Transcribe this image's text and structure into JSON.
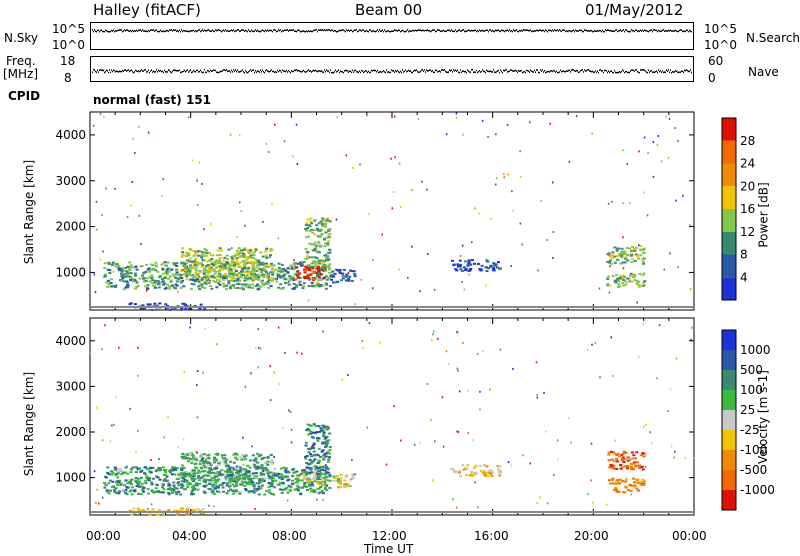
{
  "header": {
    "station": "Halley (fitACF)",
    "beam": "Beam 00",
    "date": "01/May/2012"
  },
  "nsky": {
    "label": "N.Sky",
    "tick_top": "10^5",
    "tick_bottom": "10^0"
  },
  "nsearch": {
    "label": "N.Search",
    "tick_top": "10^5",
    "tick_bottom": "10^0"
  },
  "freq": {
    "label_1": "Freq.",
    "label_2": "[MHz]",
    "tick_top": "18",
    "tick_bottom": "8"
  },
  "nave": {
    "label": "Nave",
    "tick_top": "60",
    "tick_bottom": "0"
  },
  "cpid": {
    "label": "CPID",
    "value": "normal (fast) 151"
  },
  "chart_data": [
    {
      "type": "heatmap",
      "title": "",
      "ylabel": "Slant Range [km]",
      "ylim": [
        180,
        4500
      ],
      "yticks": [
        "1000",
        "2000",
        "3000",
        "4000"
      ],
      "colorbar_label": "Power [dB]",
      "colorbar_ticks": [
        "4",
        "8",
        "12",
        "16",
        "20",
        "24",
        "28"
      ],
      "colorbar_colors": [
        "#1e32dc",
        "#2858a6",
        "#3a8a70",
        "#82c84a",
        "#f0c400",
        "#f08a00",
        "#f06a00",
        "#e01000"
      ],
      "x": [
        "00:00",
        "04:00",
        "08:00",
        "12:00",
        "16:00",
        "20:00",
        "00:00"
      ],
      "bands": [
        {
          "t0": 0.5,
          "t1": 9.5,
          "r0": 650,
          "r1": 1250,
          "level": 0.35
        },
        {
          "t0": 3.5,
          "t1": 7.2,
          "r0": 850,
          "r1": 1550,
          "level": 0.45
        },
        {
          "t0": 8.0,
          "t1": 9.3,
          "r0": 850,
          "r1": 1150,
          "level": 0.95
        },
        {
          "t0": 8.5,
          "t1": 9.5,
          "r0": 1100,
          "r1": 2200,
          "level": 0.4
        },
        {
          "t0": 9.5,
          "t1": 10.5,
          "r0": 800,
          "r1": 1100,
          "level": 0.2
        },
        {
          "t0": 14.3,
          "t1": 16.3,
          "r0": 1050,
          "r1": 1300,
          "level": 0.15
        },
        {
          "t0": 20.5,
          "t1": 22.0,
          "r0": 700,
          "r1": 1000,
          "level": 0.4
        },
        {
          "t0": 20.5,
          "t1": 22.0,
          "r0": 1200,
          "r1": 1600,
          "level": 0.4
        },
        {
          "t0": 1.5,
          "t1": 4.5,
          "r0": 200,
          "r1": 350,
          "level": 0.1
        }
      ]
    },
    {
      "type": "heatmap",
      "title": "",
      "ylabel": "Slant Range [km]",
      "xlabel": "Time UT",
      "ylim": [
        180,
        4500
      ],
      "yticks": [
        "1000",
        "2000",
        "3000",
        "4000"
      ],
      "colorbar_label": "Velocity [m s-1]",
      "colorbar_ticks": [
        "1000",
        "500",
        "100",
        "25",
        "-25",
        "-100",
        "-500",
        "-1000"
      ],
      "colorbar_colors": [
        "#1e32dc",
        "#2858a6",
        "#3a8a70",
        "#3aba3a",
        "#c8c8c8",
        "#f0c400",
        "#f08a00",
        "#f06a00",
        "#e01000"
      ],
      "x": [
        "00:00",
        "04:00",
        "08:00",
        "12:00",
        "16:00",
        "20:00",
        "00:00"
      ],
      "bands": [
        {
          "t0": 0.5,
          "t1": 9.5,
          "r0": 650,
          "r1": 1250,
          "level": 0.3
        },
        {
          "t0": 3.5,
          "t1": 7.2,
          "r0": 850,
          "r1": 1550,
          "level": 0.35
        },
        {
          "t0": 8.0,
          "t1": 9.3,
          "r0": 850,
          "r1": 1150,
          "level": 0.5
        },
        {
          "t0": 8.5,
          "t1": 9.5,
          "r0": 1100,
          "r1": 2200,
          "level": 0.25
        },
        {
          "t0": 9.5,
          "t1": 10.5,
          "r0": 800,
          "r1": 1100,
          "level": 0.55
        },
        {
          "t0": 14.3,
          "t1": 16.3,
          "r0": 1050,
          "r1": 1300,
          "level": 0.6
        },
        {
          "t0": 20.5,
          "t1": 22.0,
          "r0": 700,
          "r1": 1000,
          "level": 0.75
        },
        {
          "t0": 20.5,
          "t1": 22.0,
          "r0": 1200,
          "r1": 1600,
          "level": 0.85
        },
        {
          "t0": 1.5,
          "t1": 4.5,
          "r0": 200,
          "r1": 350,
          "level": 0.65
        }
      ]
    }
  ]
}
